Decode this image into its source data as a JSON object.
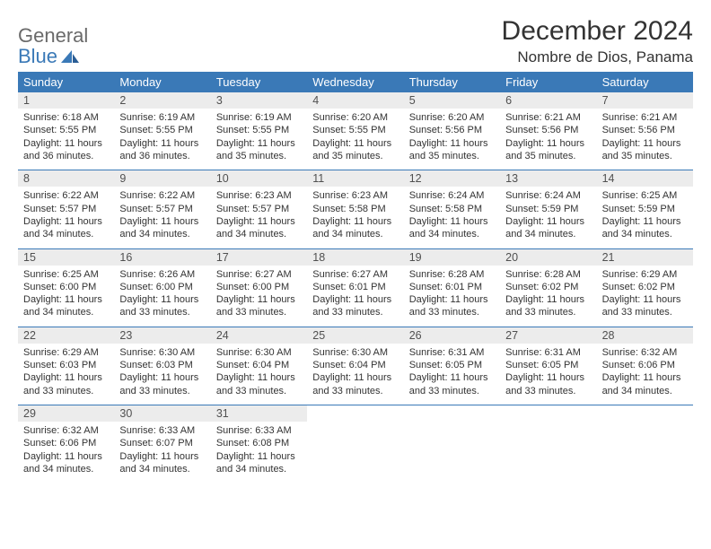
{
  "logo": {
    "line1": "General",
    "line2": "Blue"
  },
  "title": "December 2024",
  "location": "Nombre de Dios, Panama",
  "colors": {
    "header_bg": "#3a79b7",
    "header_text": "#ffffff",
    "daynum_bg": "#ececec",
    "text": "#333333",
    "logo_gray": "#6a6a6a",
    "logo_blue": "#3a79b7",
    "week_border": "#3a79b7",
    "background": "#ffffff"
  },
  "fonts": {
    "title_size": 30,
    "location_size": 17,
    "weekday_size": 13,
    "daynum_size": 12.5,
    "body_size": 11,
    "logo_size": 22
  },
  "weekdays": [
    "Sunday",
    "Monday",
    "Tuesday",
    "Wednesday",
    "Thursday",
    "Friday",
    "Saturday"
  ],
  "weeks": [
    [
      {
        "num": "1",
        "sunrise": "Sunrise: 6:18 AM",
        "sunset": "Sunset: 5:55 PM",
        "daylight": "Daylight: 11 hours and 36 minutes."
      },
      {
        "num": "2",
        "sunrise": "Sunrise: 6:19 AM",
        "sunset": "Sunset: 5:55 PM",
        "daylight": "Daylight: 11 hours and 36 minutes."
      },
      {
        "num": "3",
        "sunrise": "Sunrise: 6:19 AM",
        "sunset": "Sunset: 5:55 PM",
        "daylight": "Daylight: 11 hours and 35 minutes."
      },
      {
        "num": "4",
        "sunrise": "Sunrise: 6:20 AM",
        "sunset": "Sunset: 5:55 PM",
        "daylight": "Daylight: 11 hours and 35 minutes."
      },
      {
        "num": "5",
        "sunrise": "Sunrise: 6:20 AM",
        "sunset": "Sunset: 5:56 PM",
        "daylight": "Daylight: 11 hours and 35 minutes."
      },
      {
        "num": "6",
        "sunrise": "Sunrise: 6:21 AM",
        "sunset": "Sunset: 5:56 PM",
        "daylight": "Daylight: 11 hours and 35 minutes."
      },
      {
        "num": "7",
        "sunrise": "Sunrise: 6:21 AM",
        "sunset": "Sunset: 5:56 PM",
        "daylight": "Daylight: 11 hours and 35 minutes."
      }
    ],
    [
      {
        "num": "8",
        "sunrise": "Sunrise: 6:22 AM",
        "sunset": "Sunset: 5:57 PM",
        "daylight": "Daylight: 11 hours and 34 minutes."
      },
      {
        "num": "9",
        "sunrise": "Sunrise: 6:22 AM",
        "sunset": "Sunset: 5:57 PM",
        "daylight": "Daylight: 11 hours and 34 minutes."
      },
      {
        "num": "10",
        "sunrise": "Sunrise: 6:23 AM",
        "sunset": "Sunset: 5:57 PM",
        "daylight": "Daylight: 11 hours and 34 minutes."
      },
      {
        "num": "11",
        "sunrise": "Sunrise: 6:23 AM",
        "sunset": "Sunset: 5:58 PM",
        "daylight": "Daylight: 11 hours and 34 minutes."
      },
      {
        "num": "12",
        "sunrise": "Sunrise: 6:24 AM",
        "sunset": "Sunset: 5:58 PM",
        "daylight": "Daylight: 11 hours and 34 minutes."
      },
      {
        "num": "13",
        "sunrise": "Sunrise: 6:24 AM",
        "sunset": "Sunset: 5:59 PM",
        "daylight": "Daylight: 11 hours and 34 minutes."
      },
      {
        "num": "14",
        "sunrise": "Sunrise: 6:25 AM",
        "sunset": "Sunset: 5:59 PM",
        "daylight": "Daylight: 11 hours and 34 minutes."
      }
    ],
    [
      {
        "num": "15",
        "sunrise": "Sunrise: 6:25 AM",
        "sunset": "Sunset: 6:00 PM",
        "daylight": "Daylight: 11 hours and 34 minutes."
      },
      {
        "num": "16",
        "sunrise": "Sunrise: 6:26 AM",
        "sunset": "Sunset: 6:00 PM",
        "daylight": "Daylight: 11 hours and 33 minutes."
      },
      {
        "num": "17",
        "sunrise": "Sunrise: 6:27 AM",
        "sunset": "Sunset: 6:00 PM",
        "daylight": "Daylight: 11 hours and 33 minutes."
      },
      {
        "num": "18",
        "sunrise": "Sunrise: 6:27 AM",
        "sunset": "Sunset: 6:01 PM",
        "daylight": "Daylight: 11 hours and 33 minutes."
      },
      {
        "num": "19",
        "sunrise": "Sunrise: 6:28 AM",
        "sunset": "Sunset: 6:01 PM",
        "daylight": "Daylight: 11 hours and 33 minutes."
      },
      {
        "num": "20",
        "sunrise": "Sunrise: 6:28 AM",
        "sunset": "Sunset: 6:02 PM",
        "daylight": "Daylight: 11 hours and 33 minutes."
      },
      {
        "num": "21",
        "sunrise": "Sunrise: 6:29 AM",
        "sunset": "Sunset: 6:02 PM",
        "daylight": "Daylight: 11 hours and 33 minutes."
      }
    ],
    [
      {
        "num": "22",
        "sunrise": "Sunrise: 6:29 AM",
        "sunset": "Sunset: 6:03 PM",
        "daylight": "Daylight: 11 hours and 33 minutes."
      },
      {
        "num": "23",
        "sunrise": "Sunrise: 6:30 AM",
        "sunset": "Sunset: 6:03 PM",
        "daylight": "Daylight: 11 hours and 33 minutes."
      },
      {
        "num": "24",
        "sunrise": "Sunrise: 6:30 AM",
        "sunset": "Sunset: 6:04 PM",
        "daylight": "Daylight: 11 hours and 33 minutes."
      },
      {
        "num": "25",
        "sunrise": "Sunrise: 6:30 AM",
        "sunset": "Sunset: 6:04 PM",
        "daylight": "Daylight: 11 hours and 33 minutes."
      },
      {
        "num": "26",
        "sunrise": "Sunrise: 6:31 AM",
        "sunset": "Sunset: 6:05 PM",
        "daylight": "Daylight: 11 hours and 33 minutes."
      },
      {
        "num": "27",
        "sunrise": "Sunrise: 6:31 AM",
        "sunset": "Sunset: 6:05 PM",
        "daylight": "Daylight: 11 hours and 33 minutes."
      },
      {
        "num": "28",
        "sunrise": "Sunrise: 6:32 AM",
        "sunset": "Sunset: 6:06 PM",
        "daylight": "Daylight: 11 hours and 34 minutes."
      }
    ],
    [
      {
        "num": "29",
        "sunrise": "Sunrise: 6:32 AM",
        "sunset": "Sunset: 6:06 PM",
        "daylight": "Daylight: 11 hours and 34 minutes."
      },
      {
        "num": "30",
        "sunrise": "Sunrise: 6:33 AM",
        "sunset": "Sunset: 6:07 PM",
        "daylight": "Daylight: 11 hours and 34 minutes."
      },
      {
        "num": "31",
        "sunrise": "Sunrise: 6:33 AM",
        "sunset": "Sunset: 6:08 PM",
        "daylight": "Daylight: 11 hours and 34 minutes."
      },
      null,
      null,
      null,
      null
    ]
  ]
}
